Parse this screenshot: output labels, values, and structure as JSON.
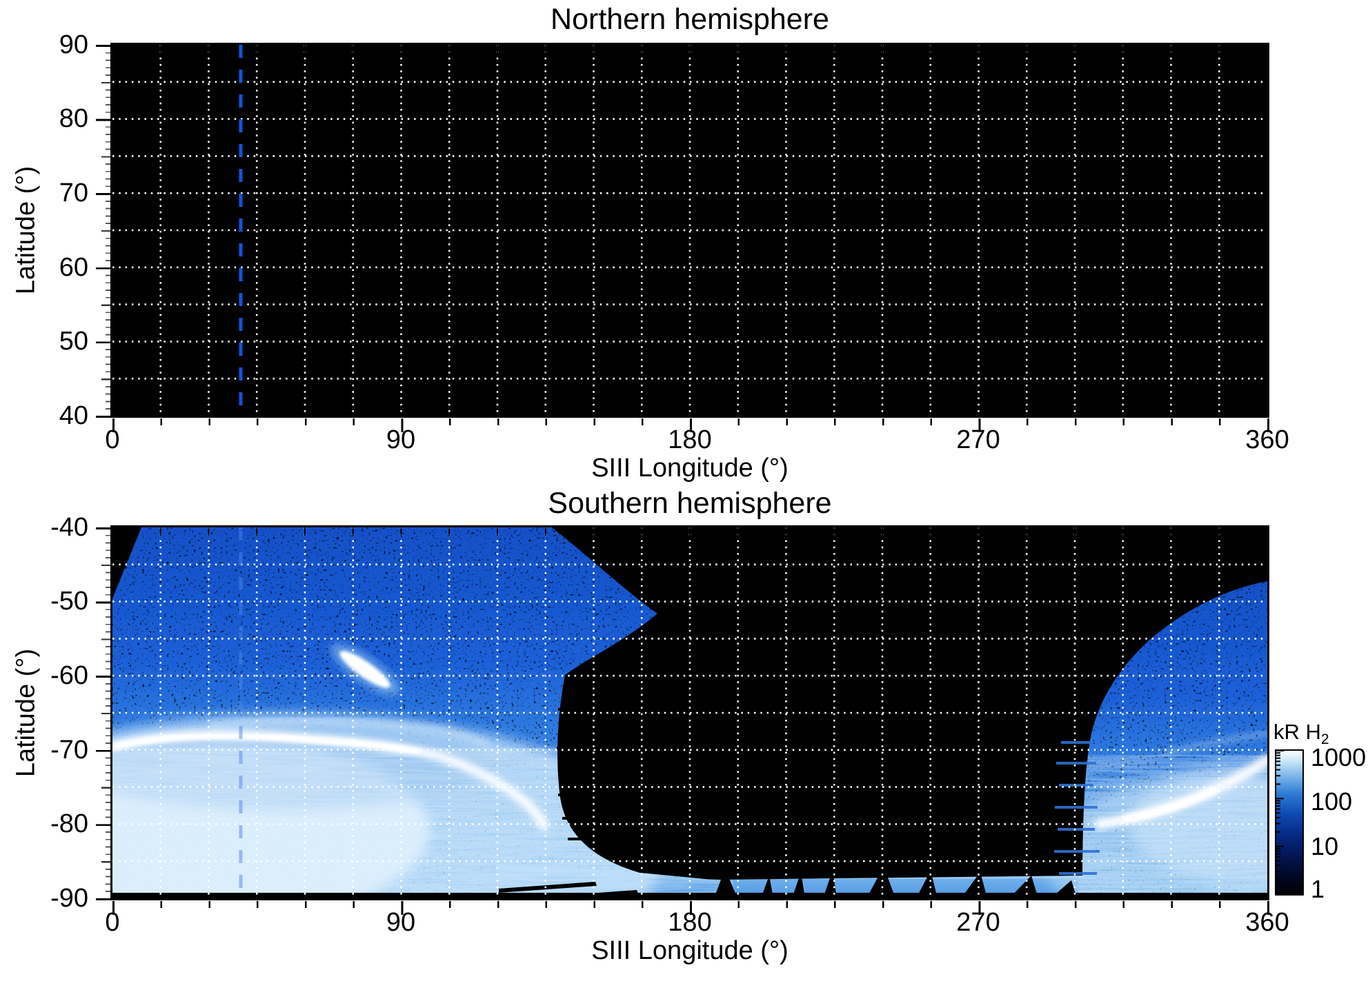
{
  "panels": {
    "north": {
      "title": "Northern hemisphere",
      "ylabel": "Latitude (°)",
      "xlabel": "SIII Longitude (°)",
      "y_tick_labels": [
        "90",
        "80",
        "70",
        "60",
        "50",
        "40"
      ],
      "x_tick_labels": [
        "0",
        "90",
        "180",
        "270",
        "360"
      ]
    },
    "south": {
      "title": "Southern hemisphere",
      "ylabel": "Latitude (°)",
      "xlabel": "SIII Longitude (°)",
      "y_tick_labels": [
        "-40",
        "-50",
        "-60",
        "-70",
        "-80",
        "-90"
      ],
      "x_tick_labels": [
        "0",
        "90",
        "180",
        "270",
        "360"
      ]
    }
  },
  "colorbar": {
    "title_main": "kR H",
    "title_sub": "2",
    "tick_labels": [
      "1000",
      "100",
      "10",
      "1"
    ],
    "scale": "log"
  },
  "reference_line": {
    "longitude_deg": 40,
    "style": "dashed",
    "color": "#1155dd"
  },
  "chart_data": [
    {
      "type": "heatmap",
      "title": "Northern hemisphere",
      "xlabel": "SIII Longitude (°)",
      "ylabel": "Latitude (°)",
      "xlim": [
        0,
        360
      ],
      "ylim": [
        40,
        90
      ],
      "x_ticks": [
        0,
        90,
        180,
        270,
        360
      ],
      "y_ticks": [
        90,
        80,
        70,
        60,
        50,
        40
      ],
      "grid": {
        "lon_spacing_deg": 15,
        "lat_spacing_deg": 5,
        "style": "white dotted"
      },
      "coverage": "no data — entire panel black",
      "annotations": [
        {
          "type": "vertical_dashed_line",
          "longitude_deg": 40,
          "color": "blue"
        }
      ]
    },
    {
      "type": "heatmap",
      "title": "Southern hemisphere",
      "xlabel": "SIII Longitude (°)",
      "ylabel": "Latitude (°)",
      "xlim": [
        0,
        360
      ],
      "ylim": [
        -90,
        -40
      ],
      "x_ticks": [
        0,
        90,
        180,
        270,
        360
      ],
      "y_ticks": [
        -40,
        -50,
        -60,
        -70,
        -80,
        -90
      ],
      "grid": {
        "lon_spacing_deg": 15,
        "lat_spacing_deg": 5,
        "style": "white dotted"
      },
      "colorbar": {
        "label": "kR H2",
        "scale": "log",
        "min": 1,
        "max": 1000,
        "ticks": [
          1,
          10,
          100,
          1000
        ]
      },
      "coverage_regions": [
        {
          "name": "west sector",
          "lon_range_deg": [
            0,
            135
          ],
          "lat_range_deg": [
            -90,
            -40
          ],
          "description": "speckled H2 emission, brightening toward the pole"
        },
        {
          "name": "east sector",
          "lon_range_deg": [
            300,
            360
          ],
          "lat_range_deg": [
            -90,
            -47
          ],
          "description": "speckled H2 emission"
        },
        {
          "name": "polar band",
          "lon_range_deg": [
            85,
            300
          ],
          "lat_range_deg": [
            -90,
            -86
          ],
          "description": "thin bright band with radial fan artifacts near 180-250°"
        },
        {
          "name": "void",
          "lon_range_deg": [
            140,
            300
          ],
          "lat_range_deg": [
            -85,
            -40
          ],
          "description": "no data — black"
        }
      ],
      "features": [
        {
          "name": "main auroral arc (west)",
          "lon_range_deg": [
            0,
            100
          ],
          "lat_deg": -69,
          "peak_kR": 1000
        },
        {
          "name": "secondary faint arc",
          "lon_range_deg": [
            30,
            100
          ],
          "lat_deg": -66,
          "peak_kR": 300
        },
        {
          "name": "isolated bright streak",
          "lon_range_deg": [
            73,
            85
          ],
          "lat_range_deg": [
            -61,
            -57
          ],
          "peak_kR": 800
        },
        {
          "name": "main auroral arc (east)",
          "lon_range_deg": [
            305,
            360
          ],
          "lat_range_deg": [
            -74,
            -67
          ],
          "peak_kR": 1000
        },
        {
          "name": "diffuse subpolar glow",
          "lat_range_deg": [
            -90,
            -75
          ],
          "typical_kR": 100
        }
      ],
      "annotations": [
        {
          "type": "vertical_dashed_line",
          "longitude_deg": 40,
          "color": "blue"
        }
      ]
    }
  ]
}
